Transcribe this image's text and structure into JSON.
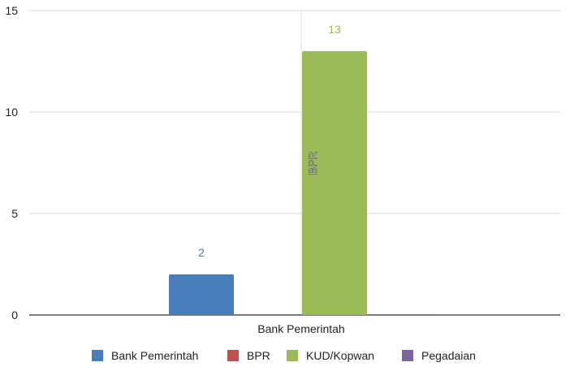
{
  "chart_data": {
    "type": "bar",
    "categories": [
      "Bank Pemerintah"
    ],
    "series": [
      {
        "name": "Bank Pemerintah",
        "values": [
          2
        ],
        "color": "#4a7ebb"
      },
      {
        "name": "BPR",
        "values": [
          0
        ],
        "color": "#c0504d"
      },
      {
        "name": "KUD/Kopwan",
        "values": [
          13
        ],
        "color": "#9bbb59"
      },
      {
        "name": "Pegadaian",
        "values": [
          0
        ],
        "color": "#8064a2"
      }
    ],
    "data_labels": [
      "2",
      "",
      "13",
      ""
    ],
    "inner_label": "BPR",
    "yticks": [
      "0",
      "5",
      "10",
      "15"
    ],
    "ylim": [
      0,
      15
    ],
    "grid": true,
    "legend": "bottom"
  }
}
